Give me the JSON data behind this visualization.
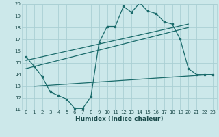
{
  "background_color": "#cce8ea",
  "grid_color": "#aacfd4",
  "line_color": "#1a6b6b",
  "xlabel": "Humidex (Indice chaleur)",
  "xlim": [
    -0.5,
    23.5
  ],
  "ylim": [
    11,
    20
  ],
  "xticks": [
    0,
    1,
    2,
    3,
    4,
    5,
    6,
    7,
    8,
    9,
    10,
    11,
    12,
    13,
    14,
    15,
    16,
    17,
    18,
    19,
    20,
    21,
    22,
    23
  ],
  "yticks": [
    11,
    12,
    13,
    14,
    15,
    16,
    17,
    18,
    19,
    20
  ],
  "curve1_x": [
    0,
    1,
    2,
    3,
    4,
    5,
    6,
    7,
    8,
    9,
    10,
    11,
    12,
    13,
    14,
    15,
    16,
    17,
    18,
    19,
    20,
    21,
    22,
    23
  ],
  "curve1_y": [
    15.5,
    14.7,
    13.8,
    12.5,
    12.2,
    11.9,
    11.1,
    11.1,
    12.1,
    16.7,
    18.1,
    18.1,
    19.8,
    19.3,
    20.1,
    19.4,
    19.2,
    18.5,
    18.3,
    17.0,
    14.5,
    14.0,
    14.0,
    14.0
  ],
  "curve2_x": [
    0,
    20
  ],
  "curve2_y": [
    15.2,
    18.3
  ],
  "curve3_x": [
    0,
    20
  ],
  "curve3_y": [
    14.5,
    18.0
  ],
  "curve4_x": [
    1,
    23
  ],
  "curve4_y": [
    13.0,
    14.0
  ]
}
